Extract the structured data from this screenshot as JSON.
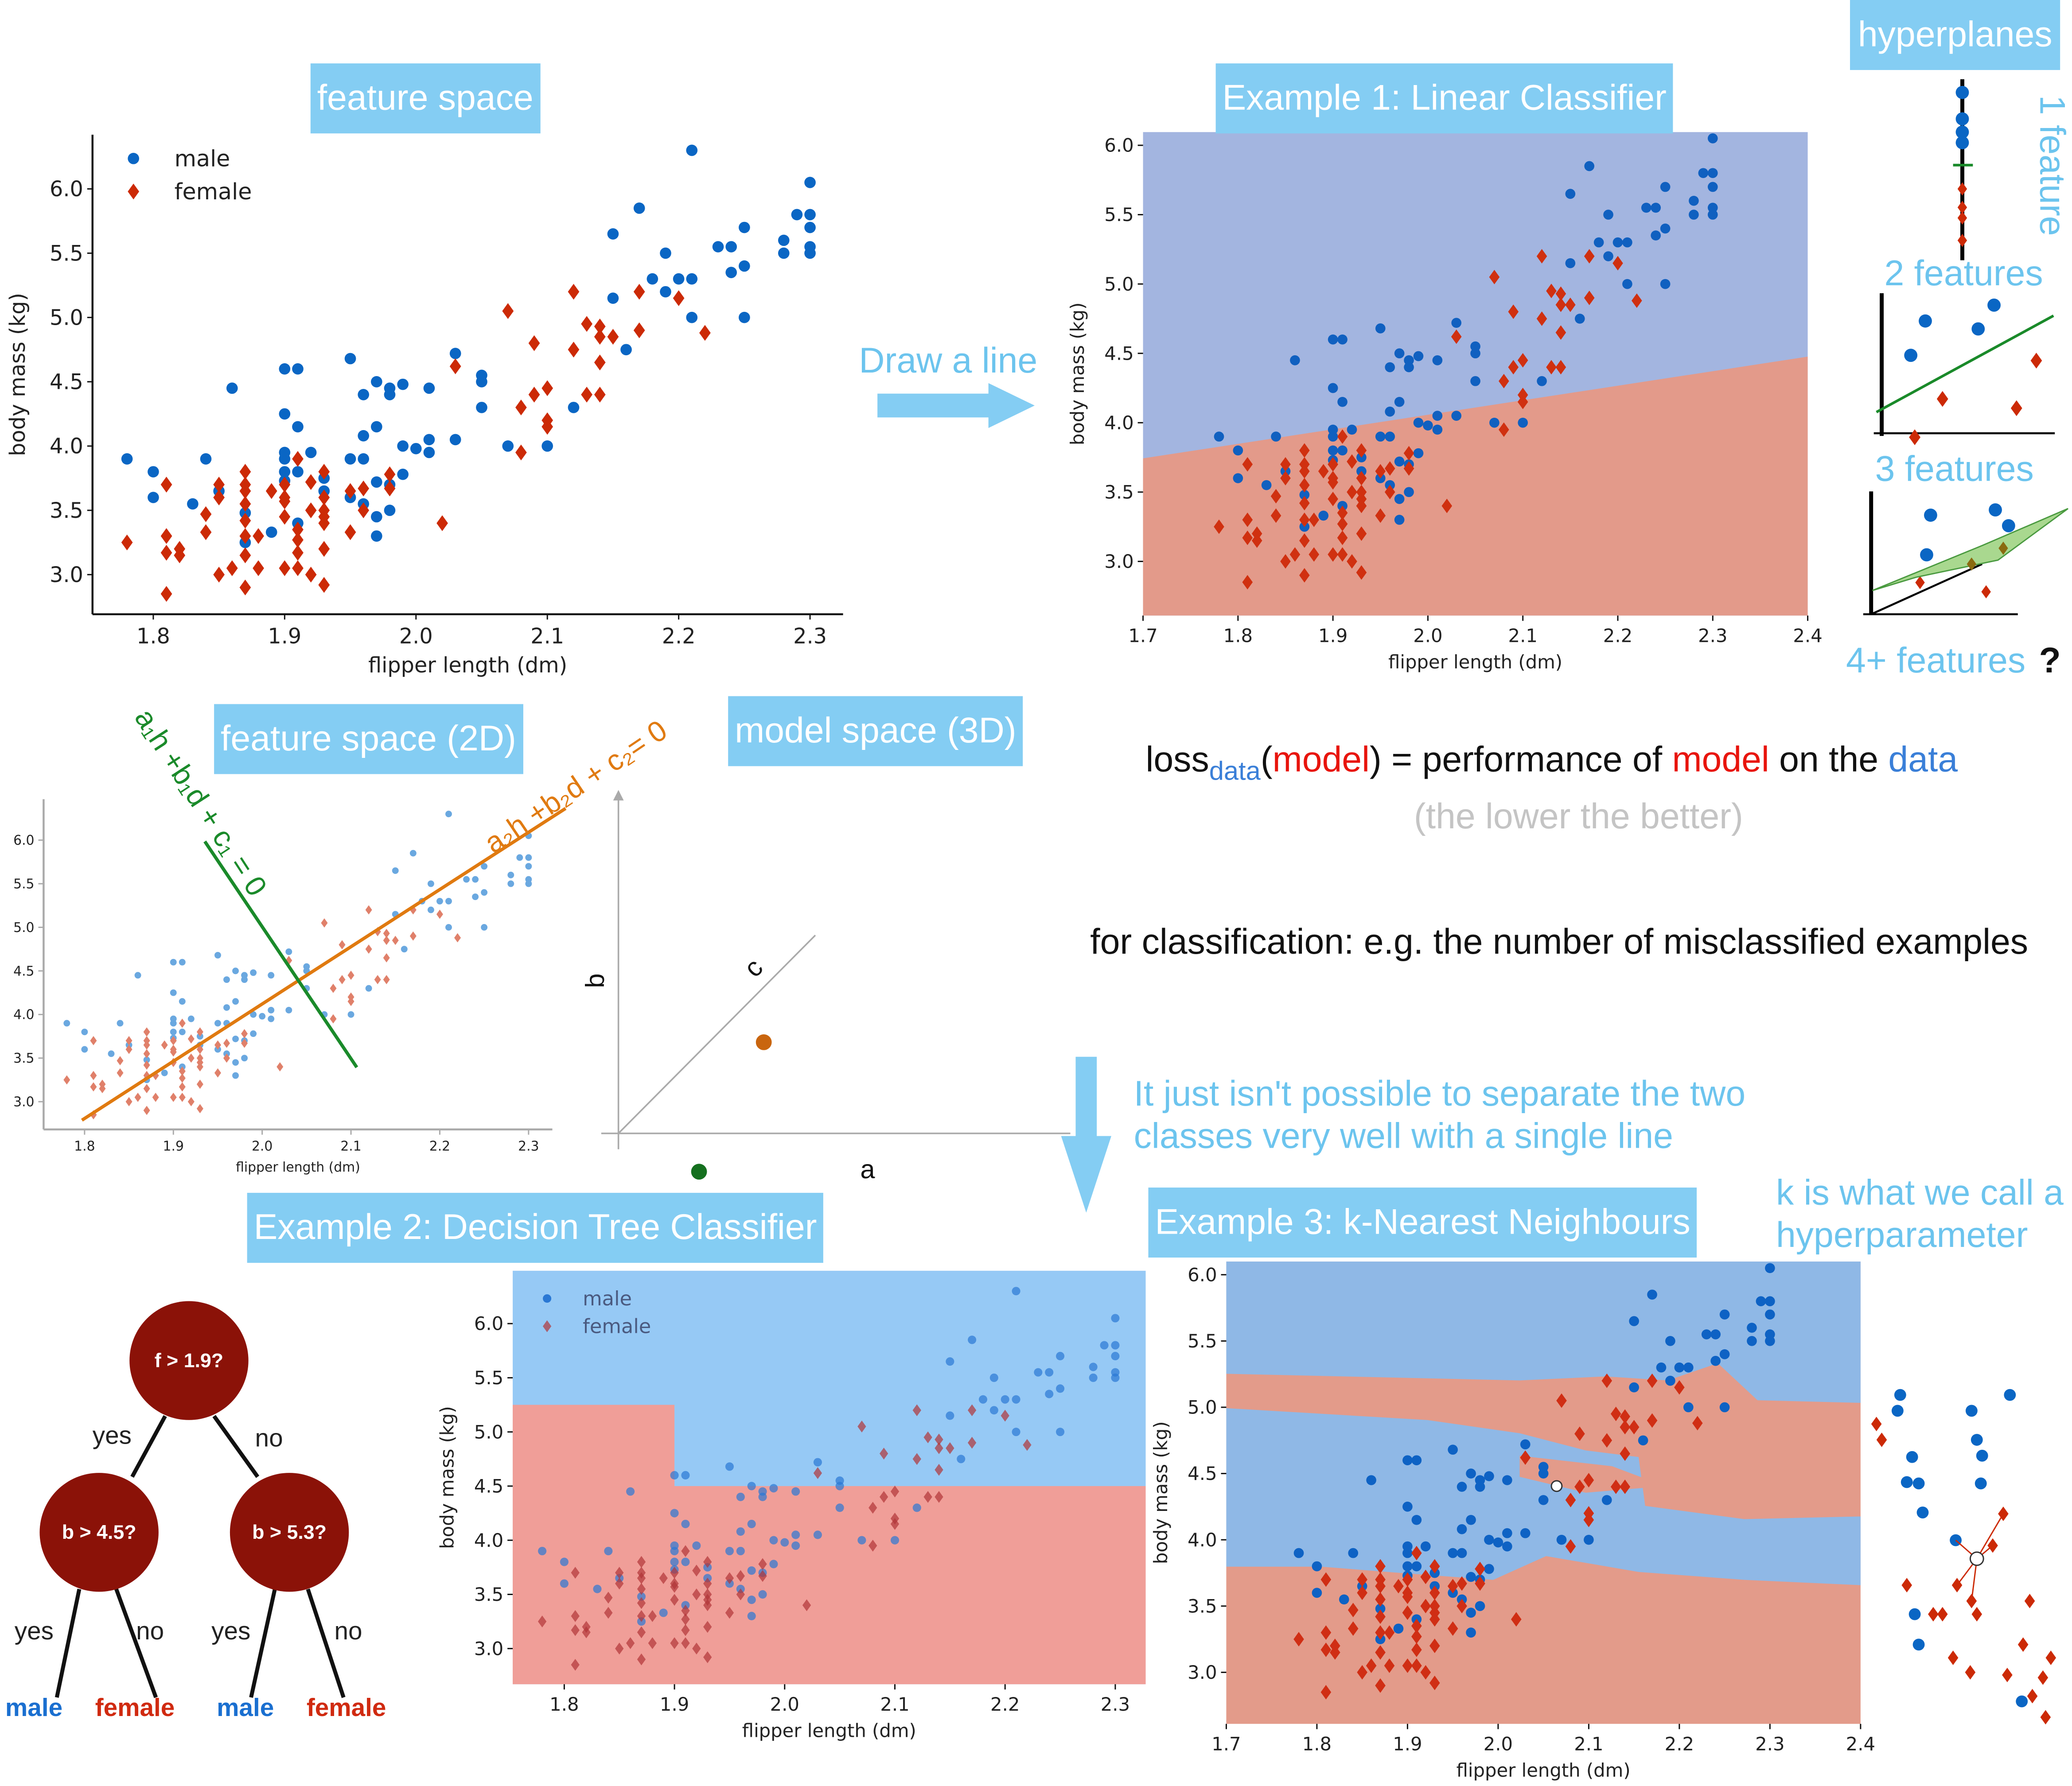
{
  "labels": {
    "feature_space": "feature space",
    "draw_a_line": "Draw a line",
    "example1": "Example 1: Linear Classifier",
    "hyperplanes": "hyperplanes",
    "one_feature": "1 feature",
    "two_features": "2 features",
    "three_features": "3 features",
    "four_features": "4+ features",
    "question_mark": "?",
    "feature_space_2d": "feature space (2D)",
    "model_space_3d": "model space (3D)",
    "eq_green": "a₁h +b₁d + c₁ = 0",
    "eq_orange": "a₂h +b₂d + c₂= 0",
    "axis_a": "a",
    "axis_b": "b",
    "axis_c": "c",
    "not_possible_1": "It just isn't possible to separate the two",
    "not_possible_2": "classes very well with a single line",
    "example2": "Example 2: Decision Tree Classifier",
    "example3": "Example 3: k-Nearest Neighbours",
    "hyper_1": "k is what we call a",
    "hyper_2": "hyperparameter"
  },
  "loss": {
    "word": "loss",
    "sub": "data",
    "open": "(",
    "model": "model",
    "mid": ") = performance of ",
    "model2": "model",
    "on": " on the ",
    "data": "data",
    "note": "(the lower the better)",
    "classification": "for classification: e.g. the number of misclassified examples"
  },
  "tree": {
    "root": "f > 1.9?",
    "left": "b > 4.5?",
    "right": "b > 5.3?",
    "yes": "yes",
    "no": "no",
    "leaves": [
      "male",
      "female",
      "male",
      "female"
    ]
  },
  "colors": {
    "male": "#0a66c4",
    "female": "#cc2a06",
    "accent": "#84cdf3",
    "tree_node": "#8b1208",
    "line_green": "#1a8a2a",
    "line_orange": "#e07a10"
  },
  "icons": [
    "arrow-right-icon",
    "arrow-down-icon"
  ],
  "chart_data": [
    {
      "type": "scatter",
      "title": "",
      "xlabel": "flipper length (dm)",
      "ylabel": "body mass (kg)",
      "x_ticks": [
        "1.8",
        "1.9",
        "2.0",
        "2.1",
        "2.2",
        "2.3"
      ],
      "y_ticks": [
        "3.0",
        "3.5",
        "4.0",
        "4.5",
        "5.0",
        "5.5",
        "6.0"
      ],
      "legend": [
        "male",
        "female"
      ],
      "legend_position": "top-left",
      "grid": false,
      "series": [
        {
          "name": "male",
          "marker": "circle",
          "points": [
            [
              1.78,
              3.9
            ],
            [
              1.8,
              3.8
            ],
            [
              1.8,
              3.6
            ],
            [
              1.83,
              3.55
            ],
            [
              1.84,
              3.9
            ],
            [
              1.85,
              3.65
            ],
            [
              1.86,
              4.45
            ],
            [
              1.87,
              3.48
            ],
            [
              1.87,
              3.25
            ],
            [
              1.89,
              3.33
            ],
            [
              1.9,
              4.6
            ],
            [
              1.91,
              4.6
            ],
            [
              1.9,
              4.25
            ],
            [
              1.91,
              4.15
            ],
            [
              1.9,
              3.95
            ],
            [
              1.9,
              3.9
            ],
            [
              1.9,
              3.8
            ],
            [
              1.91,
              3.8
            ],
            [
              1.9,
              3.73
            ],
            [
              1.92,
              3.95
            ],
            [
              1.91,
              3.4
            ],
            [
              1.93,
              3.75
            ],
            [
              1.93,
              3.65
            ],
            [
              1.95,
              4.68
            ],
            [
              1.96,
              4.4
            ],
            [
              1.97,
              4.5
            ],
            [
              1.98,
              4.45
            ],
            [
              1.98,
              4.4
            ],
            [
              1.99,
              4.48
            ],
            [
              2.01,
              4.45
            ],
            [
              1.97,
              4.15
            ],
            [
              1.96,
              4.08
            ],
            [
              1.95,
              3.9
            ],
            [
              1.96,
              3.9
            ],
            [
              1.99,
              4.0
            ],
            [
              2.0,
              3.98
            ],
            [
              2.01,
              4.05
            ],
            [
              2.01,
              3.95
            ],
            [
              2.03,
              4.05
            ],
            [
              2.03,
              4.72
            ],
            [
              2.05,
              4.55
            ],
            [
              2.05,
              4.5
            ],
            [
              2.05,
              4.3
            ],
            [
              2.07,
              4.0
            ],
            [
              2.1,
              4.0
            ],
            [
              1.99,
              3.78
            ],
            [
              1.97,
              3.72
            ],
            [
              1.98,
              3.7
            ],
            [
              1.95,
              3.6
            ],
            [
              1.96,
              3.55
            ],
            [
              1.97,
              3.45
            ],
            [
              1.98,
              3.5
            ],
            [
              1.97,
              3.3
            ],
            [
              2.12,
              4.3
            ],
            [
              2.15,
              5.65
            ],
            [
              2.15,
              5.15
            ],
            [
              2.16,
              4.75
            ],
            [
              2.17,
              5.85
            ],
            [
              2.18,
              5.3
            ],
            [
              2.19,
              5.5
            ],
            [
              2.19,
              5.2
            ],
            [
              2.2,
              5.3
            ],
            [
              2.21,
              5.3
            ],
            [
              2.21,
              5.0
            ],
            [
              2.21,
              6.3
            ],
            [
              2.23,
              5.55
            ],
            [
              2.24,
              5.55
            ],
            [
              2.24,
              5.35
            ],
            [
              2.25,
              5.7
            ],
            [
              2.25,
              5.4
            ],
            [
              2.25,
              5.0
            ],
            [
              2.28,
              5.6
            ],
            [
              2.28,
              5.5
            ],
            [
              2.29,
              5.8
            ],
            [
              2.3,
              6.05
            ],
            [
              2.3,
              5.8
            ],
            [
              2.3,
              5.7
            ],
            [
              2.3,
              5.55
            ],
            [
              2.3,
              5.5
            ]
          ]
        },
        {
          "name": "female",
          "marker": "diamond",
          "points": [
            [
              1.78,
              3.25
            ],
            [
              1.81,
              3.7
            ],
            [
              1.81,
              3.3
            ],
            [
              1.81,
              3.17
            ],
            [
              1.82,
              3.2
            ],
            [
              1.82,
              3.15
            ],
            [
              1.81,
              2.85
            ],
            [
              1.84,
              3.47
            ],
            [
              1.84,
              3.33
            ],
            [
              1.85,
              3.7
            ],
            [
              1.85,
              3.6
            ],
            [
              1.85,
              3.0
            ],
            [
              1.86,
              3.05
            ],
            [
              1.87,
              3.8
            ],
            [
              1.87,
              3.7
            ],
            [
              1.87,
              3.65
            ],
            [
              1.87,
              3.55
            ],
            [
              1.87,
              3.42
            ],
            [
              1.87,
              3.3
            ],
            [
              1.87,
              3.15
            ],
            [
              1.87,
              2.9
            ],
            [
              1.88,
              3.3
            ],
            [
              1.88,
              3.05
            ],
            [
              1.89,
              3.65
            ],
            [
              1.9,
              3.7
            ],
            [
              1.9,
              3.6
            ],
            [
              1.9,
              3.57
            ],
            [
              1.9,
              3.45
            ],
            [
              1.9,
              3.05
            ],
            [
              1.91,
              3.9
            ],
            [
              1.91,
              3.35
            ],
            [
              1.91,
              3.27
            ],
            [
              1.91,
              3.17
            ],
            [
              1.91,
              3.05
            ],
            [
              1.92,
              3.72
            ],
            [
              1.92,
              3.5
            ],
            [
              1.92,
              3.0
            ],
            [
              1.93,
              3.8
            ],
            [
              1.93,
              3.6
            ],
            [
              1.93,
              3.5
            ],
            [
              1.93,
              3.45
            ],
            [
              1.93,
              3.4
            ],
            [
              1.93,
              3.2
            ],
            [
              1.93,
              2.92
            ],
            [
              1.95,
              3.65
            ],
            [
              1.95,
              3.33
            ],
            [
              1.96,
              3.67
            ],
            [
              1.96,
              3.5
            ],
            [
              1.98,
              3.78
            ],
            [
              1.98,
              3.67
            ],
            [
              2.02,
              3.4
            ],
            [
              2.03,
              4.62
            ],
            [
              2.07,
              5.05
            ],
            [
              2.08,
              4.3
            ],
            [
              2.08,
              3.95
            ],
            [
              2.09,
              4.8
            ],
            [
              2.09,
              4.4
            ],
            [
              2.1,
              4.45
            ],
            [
              2.1,
              4.2
            ],
            [
              2.1,
              4.15
            ],
            [
              2.12,
              5.2
            ],
            [
              2.12,
              4.75
            ],
            [
              2.13,
              4.95
            ],
            [
              2.13,
              4.4
            ],
            [
              2.14,
              4.93
            ],
            [
              2.14,
              4.85
            ],
            [
              2.14,
              4.65
            ],
            [
              2.14,
              4.4
            ],
            [
              2.15,
              4.85
            ],
            [
              2.17,
              5.2
            ],
            [
              2.17,
              4.9
            ],
            [
              2.2,
              5.15
            ],
            [
              2.22,
              4.88
            ]
          ]
        }
      ]
    },
    {
      "type": "scatter",
      "title": "",
      "xlabel": "flipper length (dm)",
      "ylabel": "body mass (kg)",
      "x_ticks": [
        "1.7",
        "1.8",
        "1.9",
        "2.0",
        "2.1",
        "2.2",
        "2.3",
        "2.4"
      ],
      "y_ticks": [
        "3.0",
        "3.5",
        "4.0",
        "4.5",
        "5.0",
        "5.5",
        "6.0"
      ],
      "xlim": [
        1.7,
        2.4
      ],
      "decision_boundary": "linear",
      "regions": [
        "male: upper (blue)",
        "female: lower (red)"
      ],
      "grid": false
    },
    {
      "type": "scatter",
      "title": "",
      "xlabel": "flipper length (dm)",
      "ylabel": "",
      "x_ticks": [
        "1.8",
        "1.9",
        "2.0",
        "2.1",
        "2.2",
        "2.3"
      ],
      "y_ticks": [
        "3.0",
        "3.5",
        "4.0",
        "4.5",
        "5.0",
        "5.5",
        "6.0"
      ],
      "grid": false
    },
    {
      "type": "scatter",
      "title": "",
      "xlabel": "flipper length (dm)",
      "ylabel": "body mass (kg)",
      "x_ticks": [
        "1.8",
        "1.9",
        "2.0",
        "2.1",
        "2.2",
        "2.3"
      ],
      "y_ticks": [
        "3.0",
        "3.5",
        "4.0",
        "4.5",
        "5.0",
        "5.5",
        "6.0"
      ],
      "legend": [
        "male",
        "female"
      ],
      "legend_position": "top-left",
      "decision_boundary": "tree",
      "split_x": 1.9,
      "split_y_left": 5.25,
      "split_y_right": 4.5,
      "grid": false
    },
    {
      "type": "scatter",
      "title": "",
      "xlabel": "flipper length (dm)",
      "ylabel": "body mass (kg)",
      "x_ticks": [
        "1.7",
        "1.8",
        "1.9",
        "2.0",
        "2.1",
        "2.2",
        "2.3",
        "2.4"
      ],
      "y_ticks": [
        "3.0",
        "3.5",
        "4.0",
        "4.5",
        "5.0",
        "5.5",
        "6.0"
      ],
      "xlim": [
        1.7,
        2.4
      ],
      "decision_boundary": "k-nearest-neighbours",
      "grid": false
    }
  ]
}
